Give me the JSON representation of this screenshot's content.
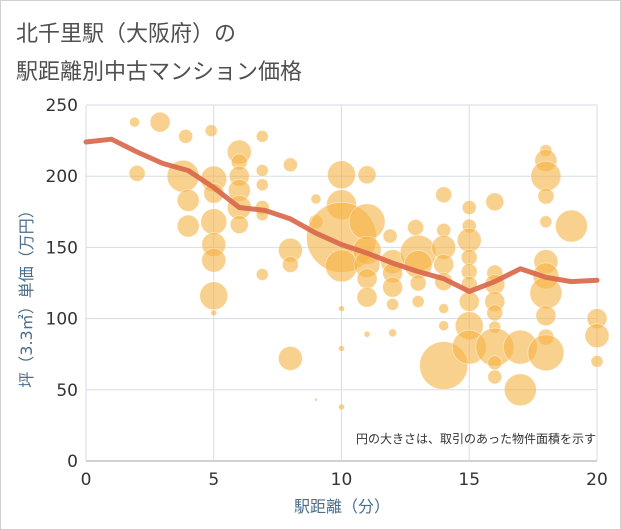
{
  "title": {
    "line1": "北千里駅（大阪府）の",
    "line2": "駅距離別中古マンション価格"
  },
  "colors": {
    "bubble": "#f5b342",
    "line": "#d9684c",
    "grid": "#d5dde5",
    "axis_label": "#4a6d8c"
  },
  "chart_data": {
    "type": "scatter",
    "xlabel": "駅距離（分）",
    "ylabel": "坪（3.3㎡）単価（万円）",
    "xlim": [
      0,
      20
    ],
    "ylim": [
      0,
      250
    ],
    "xticks": [
      "0",
      "5",
      "10",
      "15",
      "20"
    ],
    "yticks": [
      "0",
      "50",
      "100",
      "150",
      "200",
      "250"
    ],
    "grid": true,
    "annotation": "円の大きさは、取引のあった物件面積を示す",
    "points": [
      {
        "x": 1.9,
        "y": 238,
        "r": 5
      },
      {
        "x": 2.0,
        "y": 202,
        "r": 8
      },
      {
        "x": 2.9,
        "y": 238,
        "r": 10
      },
      {
        "x": 3.9,
        "y": 228,
        "r": 7
      },
      {
        "x": 3.8,
        "y": 200,
        "r": 16
      },
      {
        "x": 4.0,
        "y": 183,
        "r": 11
      },
      {
        "x": 4.0,
        "y": 165,
        "r": 11
      },
      {
        "x": 4.9,
        "y": 232,
        "r": 6
      },
      {
        "x": 5.0,
        "y": 198,
        "r": 13
      },
      {
        "x": 5.0,
        "y": 188,
        "r": 10
      },
      {
        "x": 5.0,
        "y": 168,
        "r": 13
      },
      {
        "x": 5.0,
        "y": 152,
        "r": 12
      },
      {
        "x": 5.0,
        "y": 141,
        "r": 12
      },
      {
        "x": 5.0,
        "y": 116,
        "r": 14
      },
      {
        "x": 5.0,
        "y": 104,
        "r": 3
      },
      {
        "x": 6.0,
        "y": 217,
        "r": 12
      },
      {
        "x": 6.0,
        "y": 210,
        "r": 8
      },
      {
        "x": 6.0,
        "y": 200,
        "r": 10
      },
      {
        "x": 6.0,
        "y": 190,
        "r": 11
      },
      {
        "x": 6.0,
        "y": 178,
        "r": 12
      },
      {
        "x": 6.0,
        "y": 166,
        "r": 9
      },
      {
        "x": 6.9,
        "y": 228,
        "r": 6
      },
      {
        "x": 6.9,
        "y": 204,
        "r": 6
      },
      {
        "x": 6.9,
        "y": 194,
        "r": 6
      },
      {
        "x": 6.9,
        "y": 178,
        "r": 7
      },
      {
        "x": 6.9,
        "y": 173,
        "r": 6
      },
      {
        "x": 6.9,
        "y": 131,
        "r": 6
      },
      {
        "x": 8.0,
        "y": 208,
        "r": 7
      },
      {
        "x": 8.0,
        "y": 148,
        "r": 12
      },
      {
        "x": 8.0,
        "y": 138,
        "r": 8
      },
      {
        "x": 8.0,
        "y": 72,
        "r": 12
      },
      {
        "x": 9.0,
        "y": 184,
        "r": 5
      },
      {
        "x": 9.0,
        "y": 168,
        "r": 7
      },
      {
        "x": 9.0,
        "y": 43,
        "r": 1
      },
      {
        "x": 10.0,
        "y": 201,
        "r": 14
      },
      {
        "x": 10.0,
        "y": 180,
        "r": 15
      },
      {
        "x": 10.0,
        "y": 157,
        "r": 35
      },
      {
        "x": 10.0,
        "y": 137,
        "r": 16
      },
      {
        "x": 10.0,
        "y": 107,
        "r": 3
      },
      {
        "x": 10.0,
        "y": 79,
        "r": 3
      },
      {
        "x": 10.0,
        "y": 38,
        "r": 3
      },
      {
        "x": 11.0,
        "y": 201,
        "r": 9
      },
      {
        "x": 11.0,
        "y": 168,
        "r": 18
      },
      {
        "x": 11.0,
        "y": 148,
        "r": 14
      },
      {
        "x": 11.0,
        "y": 138,
        "r": 13
      },
      {
        "x": 11.0,
        "y": 128,
        "r": 10
      },
      {
        "x": 11.0,
        "y": 115,
        "r": 10
      },
      {
        "x": 11.0,
        "y": 89,
        "r": 3
      },
      {
        "x": 11.9,
        "y": 158,
        "r": 7
      },
      {
        "x": 12.0,
        "y": 140,
        "r": 12
      },
      {
        "x": 12.0,
        "y": 132,
        "r": 10
      },
      {
        "x": 12.0,
        "y": 122,
        "r": 10
      },
      {
        "x": 12.0,
        "y": 110,
        "r": 6
      },
      {
        "x": 12.0,
        "y": 90,
        "r": 4
      },
      {
        "x": 12.9,
        "y": 164,
        "r": 8
      },
      {
        "x": 13.0,
        "y": 146,
        "r": 18
      },
      {
        "x": 13.0,
        "y": 138,
        "r": 14
      },
      {
        "x": 13.0,
        "y": 125,
        "r": 8
      },
      {
        "x": 13.0,
        "y": 112,
        "r": 6
      },
      {
        "x": 14.0,
        "y": 187,
        "r": 8
      },
      {
        "x": 14.0,
        "y": 162,
        "r": 7
      },
      {
        "x": 14.0,
        "y": 150,
        "r": 12
      },
      {
        "x": 14.0,
        "y": 138,
        "r": 10
      },
      {
        "x": 14.0,
        "y": 126,
        "r": 9
      },
      {
        "x": 14.0,
        "y": 107,
        "r": 5
      },
      {
        "x": 14.0,
        "y": 95,
        "r": 5
      },
      {
        "x": 14.0,
        "y": 67,
        "r": 24
      },
      {
        "x": 15.0,
        "y": 178,
        "r": 7
      },
      {
        "x": 15.0,
        "y": 165,
        "r": 7
      },
      {
        "x": 15.0,
        "y": 155,
        "r": 12
      },
      {
        "x": 15.0,
        "y": 143,
        "r": 8
      },
      {
        "x": 15.0,
        "y": 133,
        "r": 8
      },
      {
        "x": 15.0,
        "y": 124,
        "r": 8
      },
      {
        "x": 15.0,
        "y": 112,
        "r": 10
      },
      {
        "x": 15.0,
        "y": 95,
        "r": 14
      },
      {
        "x": 15.0,
        "y": 80,
        "r": 17
      },
      {
        "x": 16.0,
        "y": 182,
        "r": 9
      },
      {
        "x": 16.0,
        "y": 132,
        "r": 8
      },
      {
        "x": 16.0,
        "y": 124,
        "r": 10
      },
      {
        "x": 16.0,
        "y": 112,
        "r": 10
      },
      {
        "x": 16.0,
        "y": 104,
        "r": 8
      },
      {
        "x": 16.0,
        "y": 94,
        "r": 6
      },
      {
        "x": 16.0,
        "y": 80,
        "r": 19
      },
      {
        "x": 16.0,
        "y": 69,
        "r": 7
      },
      {
        "x": 16.0,
        "y": 59,
        "r": 7
      },
      {
        "x": 17.0,
        "y": 80,
        "r": 17
      },
      {
        "x": 17.0,
        "y": 50,
        "r": 16
      },
      {
        "x": 18.0,
        "y": 218,
        "r": 6
      },
      {
        "x": 18.0,
        "y": 211,
        "r": 11
      },
      {
        "x": 18.0,
        "y": 200,
        "r": 15
      },
      {
        "x": 18.0,
        "y": 186,
        "r": 8
      },
      {
        "x": 18.0,
        "y": 168,
        "r": 6
      },
      {
        "x": 18.0,
        "y": 140,
        "r": 12
      },
      {
        "x": 18.0,
        "y": 130,
        "r": 13
      },
      {
        "x": 18.0,
        "y": 118,
        "r": 16
      },
      {
        "x": 18.0,
        "y": 102,
        "r": 10
      },
      {
        "x": 18.0,
        "y": 87,
        "r": 8
      },
      {
        "x": 18.0,
        "y": 76,
        "r": 18
      },
      {
        "x": 19.0,
        "y": 165,
        "r": 16
      },
      {
        "x": 20.0,
        "y": 100,
        "r": 10
      },
      {
        "x": 20.0,
        "y": 88,
        "r": 12
      },
      {
        "x": 20.0,
        "y": 70,
        "r": 6
      }
    ],
    "trend": {
      "name": "",
      "x": [
        0,
        1,
        2,
        3,
        4,
        5,
        6,
        7,
        8,
        9,
        10,
        11,
        12,
        13,
        14,
        15,
        16,
        17,
        18,
        19,
        20
      ],
      "y": [
        224,
        226,
        217,
        209,
        204,
        192,
        178,
        176,
        170,
        160,
        152,
        146,
        139,
        133,
        128,
        119,
        126,
        135,
        129,
        126,
        127
      ]
    }
  }
}
